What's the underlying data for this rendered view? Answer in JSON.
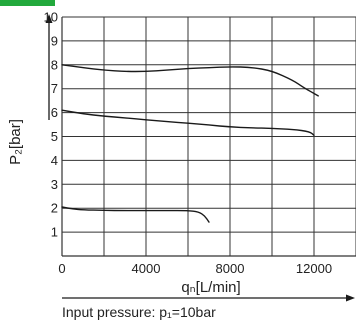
{
  "chart_data": {
    "type": "line",
    "title": "",
    "xlabel": "qₙ[L/min]",
    "ylabel": "P₂[bar]",
    "xlim": [
      0,
      14000
    ],
    "ylim": [
      0,
      10
    ],
    "x_ticks": [
      0,
      4000,
      8000,
      12000
    ],
    "x_tick_labels": [
      "0",
      "4000",
      "8000",
      "12000"
    ],
    "x_grid_step": 2000,
    "y_ticks": [
      1,
      2,
      3,
      4,
      5,
      6,
      7,
      8,
      9,
      10
    ],
    "y_tick_labels": [
      "1",
      "2",
      "3",
      "4",
      "5",
      "6",
      "7",
      "8",
      "9",
      "10"
    ],
    "grid": true,
    "legend": "none",
    "series": [
      {
        "points": [
          [
            0,
            8.0
          ],
          [
            1000,
            7.88
          ],
          [
            2000,
            7.78
          ],
          [
            3000,
            7.72
          ],
          [
            4000,
            7.72
          ],
          [
            5000,
            7.78
          ],
          [
            6000,
            7.84
          ],
          [
            7000,
            7.88
          ],
          [
            8000,
            7.92
          ],
          [
            9000,
            7.9
          ],
          [
            10000,
            7.75
          ],
          [
            11000,
            7.35
          ],
          [
            11500,
            7.05
          ],
          [
            12200,
            6.7
          ]
        ]
      },
      {
        "points": [
          [
            0,
            6.1
          ],
          [
            1000,
            5.95
          ],
          [
            2000,
            5.85
          ],
          [
            3000,
            5.78
          ],
          [
            4000,
            5.7
          ],
          [
            5000,
            5.62
          ],
          [
            6000,
            5.56
          ],
          [
            7000,
            5.48
          ],
          [
            8000,
            5.4
          ],
          [
            9000,
            5.36
          ],
          [
            10000,
            5.34
          ],
          [
            11000,
            5.3
          ],
          [
            11800,
            5.2
          ],
          [
            12000,
            5.05
          ]
        ]
      },
      {
        "points": [
          [
            0,
            2.05
          ],
          [
            500,
            1.97
          ],
          [
            1000,
            1.93
          ],
          [
            2000,
            1.91
          ],
          [
            3000,
            1.9
          ],
          [
            4000,
            1.9
          ],
          [
            5000,
            1.9
          ],
          [
            6000,
            1.9
          ],
          [
            6500,
            1.85
          ],
          [
            6800,
            1.68
          ],
          [
            7000,
            1.42
          ]
        ]
      }
    ]
  },
  "colors": {
    "series_line": "#1a1a1a",
    "grid": "#333333",
    "accent_bar": "#22a93c"
  },
  "footnote": {
    "text": "Input pressure: p₁=10bar"
  }
}
